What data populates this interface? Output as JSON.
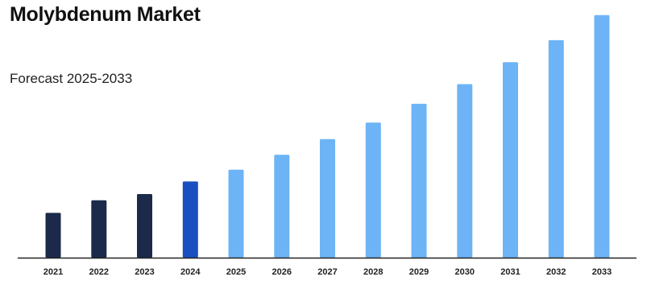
{
  "chart_data": {
    "type": "bar",
    "title": "Molybdenum Market",
    "subtitle": "Forecast 2025-2033",
    "xlabel": "",
    "ylabel": "",
    "categories": [
      "2021",
      "2022",
      "2023",
      "2024",
      "2025",
      "2026",
      "2027",
      "2028",
      "2029",
      "2030",
      "2031",
      "2032",
      "2033"
    ],
    "values": [
      57,
      73,
      81,
      97,
      112,
      131,
      151,
      172,
      196,
      221,
      249,
      277,
      309
    ],
    "ylim": [
      0,
      320
    ],
    "grid": false,
    "legend": "none",
    "colors": {
      "historical": "#1b2a4a",
      "base_year": "#1a4fbf",
      "forecast": "#6cb4f5",
      "axis": "#222222"
    },
    "color_groups": [
      "historical",
      "historical",
      "historical",
      "base_year",
      "forecast",
      "forecast",
      "forecast",
      "forecast",
      "forecast",
      "forecast",
      "forecast",
      "forecast",
      "forecast"
    ]
  }
}
